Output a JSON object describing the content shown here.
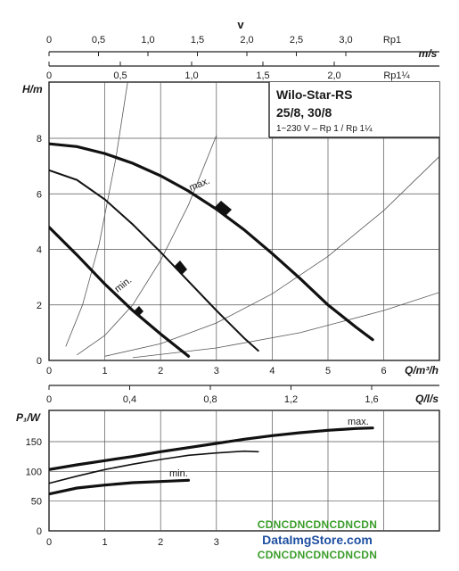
{
  "chart_data": [
    {
      "type": "line",
      "panel": "pump-head",
      "title_lines": [
        "Wilo-Star-RS",
        "25/8, 30/8"
      ],
      "subtitle": "1~230 V – Rp 1 / Rp 1¼",
      "xlabel": "Q/m³/h",
      "ylabel": "H/m",
      "xlim": [
        0,
        7
      ],
      "ylim": [
        0,
        8
      ],
      "xticks": [
        "0",
        "1",
        "2",
        "3",
        "4",
        "5",
        "6"
      ],
      "yticks": [
        "0",
        "2",
        "4",
        "6",
        "8"
      ],
      "grid": true,
      "series": [
        {
          "name": "max.",
          "x": [
            0,
            0.5,
            1,
            1.5,
            2,
            2.5,
            3,
            3.5,
            4,
            4.5,
            5,
            5.5,
            5.8
          ],
          "y": [
            7.8,
            7.7,
            7.45,
            7.1,
            6.65,
            6.1,
            5.45,
            4.7,
            3.85,
            2.95,
            2.0,
            1.2,
            0.75
          ]
        },
        {
          "name": "",
          "x": [
            0,
            0.5,
            1,
            1.5,
            2,
            2.5,
            3,
            3.5,
            3.75
          ],
          "y": [
            6.85,
            6.5,
            5.8,
            4.9,
            3.9,
            2.85,
            1.8,
            0.8,
            0.35
          ]
        },
        {
          "name": "min.",
          "x": [
            0,
            0.5,
            1,
            1.5,
            2,
            2.5
          ],
          "y": [
            4.8,
            3.8,
            2.75,
            1.8,
            0.95,
            0.15
          ]
        }
      ],
      "system_curves": [
        {
          "x": [
            0.3,
            0.6,
            0.9,
            1.2,
            1.5,
            1.8,
            2.1
          ],
          "y": [
            0.5,
            2.0,
            4.2,
            7.3,
            11.2,
            16.1,
            21.9
          ]
        },
        {
          "x": [
            0.5,
            1,
            1.5,
            2,
            2.5,
            3
          ],
          "y": [
            0.2,
            0.9,
            2.0,
            3.6,
            5.6,
            8.1
          ]
        },
        {
          "x": [
            1,
            2,
            3,
            4,
            5,
            6,
            7
          ],
          "y": [
            0.15,
            0.6,
            1.35,
            2.4,
            3.75,
            5.4,
            7.35
          ]
        },
        {
          "x": [
            1.5,
            3,
            4.5,
            6,
            7
          ],
          "y": [
            0.1,
            0.45,
            1.0,
            1.8,
            2.45
          ]
        }
      ],
      "label_angles": {
        "max.": -22,
        "min.": -38
      }
    },
    {
      "type": "line",
      "panel": "power",
      "xlabel": "",
      "ylabel": "P₁/W",
      "xlim": [
        0,
        7
      ],
      "ylim": [
        0,
        200
      ],
      "xticks": [
        "0",
        "1",
        "2",
        "3"
      ],
      "yticks": [
        "0",
        "50",
        "100",
        "150"
      ],
      "grid": true,
      "series": [
        {
          "name": "max.",
          "x": [
            0,
            0.5,
            1,
            1.5,
            2,
            2.5,
            3,
            3.5,
            4,
            4.5,
            5,
            5.5,
            5.8
          ],
          "y": [
            103,
            111,
            118,
            125,
            133,
            140,
            147,
            154,
            160,
            165,
            169,
            172,
            173
          ]
        },
        {
          "name": "",
          "x": [
            0,
            0.5,
            1,
            1.5,
            2,
            2.5,
            3,
            3.5,
            3.75
          ],
          "y": [
            80,
            92,
            103,
            112,
            120,
            127,
            131,
            134,
            133
          ]
        },
        {
          "name": "min.",
          "x": [
            0,
            0.5,
            1,
            1.5,
            2,
            2.5
          ],
          "y": [
            62,
            72,
            77,
            81,
            83,
            85
          ]
        }
      ]
    }
  ],
  "top_axes": {
    "v_label": "v",
    "ms_label": "m/s",
    "rp1_label": "Rp1",
    "rp114_label": "Rp1¼",
    "rp1_ticks": [
      "0",
      "0,5",
      "1,0",
      "1,5",
      "2,0",
      "2,5",
      "3,0"
    ],
    "rp114_ticks": [
      "0",
      "0,5",
      "1,0",
      "1,5",
      "2,0"
    ],
    "mid_label": "Q/l/s",
    "mid_ticks": [
      "0",
      "0,4",
      "0,8",
      "1,2",
      "1,6"
    ]
  },
  "watermark": {
    "line1": "CDNCDNCDNCDNCDN",
    "line2": "DataImgStore.com",
    "line3": "CDNCDNCDNCDNCDN",
    "color_green": "#3a9d2a",
    "color_blue": "#1f4fa0"
  }
}
